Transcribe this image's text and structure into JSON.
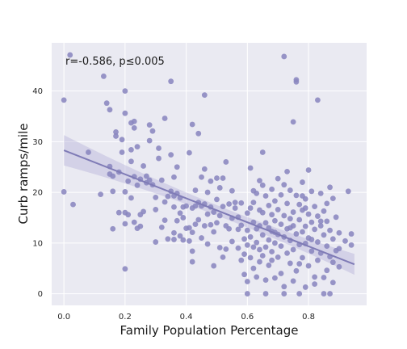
{
  "chart_data": {
    "type": "scatter",
    "xlabel": "Family Population Percentage",
    "ylabel": "Curb ramps/mile",
    "annotation": "r=-0.586,  p≤0.005",
    "xlim": [
      -0.04,
      0.99
    ],
    "ylim": [
      -2.3,
      49.5
    ],
    "xticks": [
      0.0,
      0.2,
      0.4,
      0.6,
      0.8
    ],
    "xtick_labels": [
      "0.0",
      "0.2",
      "0.4",
      "0.6",
      "0.8"
    ],
    "yticks": [
      0,
      10,
      20,
      30,
      40
    ],
    "ytick_labels": [
      "0",
      "10",
      "20",
      "30",
      "40"
    ],
    "grid": true,
    "colors": {
      "background": "#eaeaf2",
      "grid": "#ffffff",
      "points": "#8a86bf",
      "line": "#7f7bb6",
      "band": "#b7b4d9"
    },
    "regression": {
      "x": [
        0.0,
        0.95
      ],
      "y": [
        28.3,
        5.8
      ],
      "ci_upper": [
        31.3,
        7.6
      ],
      "ci_lower": [
        25.3,
        4.0
      ]
    },
    "points": [
      [
        0.02,
        47.1
      ],
      [
        0.0,
        38.2
      ],
      [
        0.0,
        20.1
      ],
      [
        0.03,
        17.6
      ],
      [
        0.08,
        27.9
      ],
      [
        0.12,
        19.6
      ],
      [
        0.13,
        42.9
      ],
      [
        0.14,
        37.6
      ],
      [
        0.15,
        36.3
      ],
      [
        0.15,
        23.6
      ],
      [
        0.15,
        25.1
      ],
      [
        0.16,
        23.2
      ],
      [
        0.16,
        20.2
      ],
      [
        0.16,
        12.8
      ],
      [
        0.17,
        31.9
      ],
      [
        0.17,
        31.1
      ],
      [
        0.18,
        24.0
      ],
      [
        0.18,
        16.0
      ],
      [
        0.19,
        30.4
      ],
      [
        0.19,
        27.9
      ],
      [
        0.2,
        35.6
      ],
      [
        0.2,
        40.0
      ],
      [
        0.2,
        20.1
      ],
      [
        0.2,
        16.0
      ],
      [
        0.2,
        4.9
      ],
      [
        0.21,
        15.6
      ],
      [
        0.22,
        28.4
      ],
      [
        0.22,
        33.7
      ],
      [
        0.22,
        26.1
      ],
      [
        0.22,
        18.9
      ],
      [
        0.23,
        34.0
      ],
      [
        0.23,
        32.7
      ],
      [
        0.23,
        23.1
      ],
      [
        0.23,
        14.1
      ],
      [
        0.24,
        21.4
      ],
      [
        0.24,
        12.9
      ],
      [
        0.25,
        22.6
      ],
      [
        0.25,
        15.6
      ],
      [
        0.25,
        13.3
      ],
      [
        0.26,
        25.2
      ],
      [
        0.27,
        21.9
      ],
      [
        0.27,
        23.2
      ],
      [
        0.28,
        33.3
      ],
      [
        0.28,
        22.4
      ],
      [
        0.29,
        32.1
      ],
      [
        0.29,
        21.5
      ],
      [
        0.3,
        19.0
      ],
      [
        0.3,
        10.2
      ],
      [
        0.31,
        28.7
      ],
      [
        0.31,
        26.7
      ],
      [
        0.32,
        22.4
      ],
      [
        0.32,
        13.1
      ],
      [
        0.33,
        34.6
      ],
      [
        0.33,
        18.1
      ],
      [
        0.34,
        19.2
      ],
      [
        0.34,
        10.8
      ],
      [
        0.35,
        41.9
      ],
      [
        0.35,
        20.2
      ],
      [
        0.35,
        27.4
      ],
      [
        0.36,
        19.3
      ],
      [
        0.36,
        17.1
      ],
      [
        0.36,
        10.7
      ],
      [
        0.36,
        12.0
      ],
      [
        0.37,
        25.0
      ],
      [
        0.37,
        19.8
      ],
      [
        0.37,
        14.4
      ],
      [
        0.38,
        18.9
      ],
      [
        0.38,
        15.9
      ],
      [
        0.38,
        11.4
      ],
      [
        0.39,
        17.1
      ],
      [
        0.39,
        10.6
      ],
      [
        0.4,
        17.3
      ],
      [
        0.4,
        12.9
      ],
      [
        0.41,
        27.8
      ],
      [
        0.41,
        13.0
      ],
      [
        0.41,
        10.4
      ],
      [
        0.42,
        16.9
      ],
      [
        0.42,
        12.1
      ],
      [
        0.42,
        8.4
      ],
      [
        0.42,
        6.3
      ],
      [
        0.42,
        33.4
      ],
      [
        0.43,
        17.3
      ],
      [
        0.43,
        13.7
      ],
      [
        0.44,
        31.6
      ],
      [
        0.44,
        18.0
      ],
      [
        0.44,
        14.6
      ],
      [
        0.45,
        23.0
      ],
      [
        0.45,
        17.3
      ],
      [
        0.45,
        11.0
      ],
      [
        0.46,
        39.2
      ],
      [
        0.46,
        17.7
      ],
      [
        0.46,
        13.4
      ],
      [
        0.47,
        20.0
      ],
      [
        0.47,
        15.7
      ],
      [
        0.47,
        9.8
      ],
      [
        0.48,
        22.2
      ],
      [
        0.48,
        17.1
      ],
      [
        0.48,
        13.6
      ],
      [
        0.49,
        16.1
      ],
      [
        0.49,
        12.2
      ],
      [
        0.5,
        22.8
      ],
      [
        0.5,
        18.6
      ],
      [
        0.5,
        14.0
      ],
      [
        0.51,
        20.9
      ],
      [
        0.51,
        15.4
      ],
      [
        0.51,
        9.1
      ],
      [
        0.52,
        22.8
      ],
      [
        0.52,
        17.2
      ],
      [
        0.52,
        7.2
      ],
      [
        0.53,
        26.0
      ],
      [
        0.53,
        13.4
      ],
      [
        0.54,
        17.7
      ],
      [
        0.54,
        12.8
      ],
      [
        0.55,
        14.9
      ],
      [
        0.55,
        10.3
      ],
      [
        0.56,
        16.9
      ],
      [
        0.56,
        18.0
      ],
      [
        0.57,
        12.7
      ],
      [
        0.57,
        9.0
      ],
      [
        0.58,
        13.5
      ],
      [
        0.58,
        17.9
      ],
      [
        0.58,
        6.6
      ],
      [
        0.59,
        10.8
      ],
      [
        0.59,
        7.8
      ],
      [
        0.6,
        15.9
      ],
      [
        0.6,
        12.5
      ],
      [
        0.6,
        9.6
      ],
      [
        0.6,
        0.0
      ],
      [
        0.61,
        24.8
      ],
      [
        0.61,
        16.9
      ],
      [
        0.61,
        11.2
      ],
      [
        0.61,
        7.1
      ],
      [
        0.62,
        18.0
      ],
      [
        0.62,
        14.1
      ],
      [
        0.62,
        9.2
      ],
      [
        0.62,
        5.0
      ],
      [
        0.63,
        19.8
      ],
      [
        0.63,
        12.8
      ],
      [
        0.63,
        10.1
      ],
      [
        0.63,
        3.3
      ],
      [
        0.64,
        16.5
      ],
      [
        0.64,
        13.4
      ],
      [
        0.64,
        8.7
      ],
      [
        0.64,
        6.3
      ],
      [
        0.65,
        21.4
      ],
      [
        0.65,
        16.0
      ],
      [
        0.65,
        11.6
      ],
      [
        0.65,
        7.5
      ],
      [
        0.65,
        27.9
      ],
      [
        0.66,
        19.3
      ],
      [
        0.66,
        14.0
      ],
      [
        0.66,
        9.2
      ],
      [
        0.66,
        0.0
      ],
      [
        0.67,
        17.4
      ],
      [
        0.67,
        13.0
      ],
      [
        0.67,
        10.6
      ],
      [
        0.67,
        5.6
      ],
      [
        0.68,
        20.6
      ],
      [
        0.68,
        15.6
      ],
      [
        0.68,
        12.3
      ],
      [
        0.68,
        8.3
      ],
      [
        0.69,
        18.3
      ],
      [
        0.69,
        14.4
      ],
      [
        0.69,
        10.0
      ],
      [
        0.69,
        3.1
      ],
      [
        0.7,
        22.7
      ],
      [
        0.7,
        16.6
      ],
      [
        0.7,
        11.7
      ],
      [
        0.7,
        7.2
      ],
      [
        0.71,
        19.5
      ],
      [
        0.71,
        13.7
      ],
      [
        0.71,
        9.4
      ],
      [
        0.72,
        46.8
      ],
      [
        0.72,
        21.5
      ],
      [
        0.72,
        15.4
      ],
      [
        0.72,
        11.2
      ],
      [
        0.72,
        1.4
      ],
      [
        0.73,
        24.1
      ],
      [
        0.73,
        17.8
      ],
      [
        0.73,
        12.8
      ],
      [
        0.73,
        8.0
      ],
      [
        0.74,
        20.4
      ],
      [
        0.74,
        14.8
      ],
      [
        0.74,
        10.5
      ],
      [
        0.74,
        6.0
      ],
      [
        0.75,
        33.9
      ],
      [
        0.75,
        16.1
      ],
      [
        0.75,
        13.4
      ],
      [
        0.75,
        8.7
      ],
      [
        0.76,
        42.2
      ],
      [
        0.76,
        41.8
      ],
      [
        0.76,
        19.4
      ],
      [
        0.76,
        11.8
      ],
      [
        0.76,
        4.5
      ],
      [
        0.77,
        17.6
      ],
      [
        0.77,
        14.6
      ],
      [
        0.77,
        9.7
      ],
      [
        0.77,
        0.0
      ],
      [
        0.78,
        22.0
      ],
      [
        0.78,
        16.5
      ],
      [
        0.78,
        12.2
      ],
      [
        0.78,
        7.1
      ],
      [
        0.79,
        18.7
      ],
      [
        0.79,
        13.3
      ],
      [
        0.79,
        9.9
      ],
      [
        0.79,
        1.3
      ],
      [
        0.8,
        24.4
      ],
      [
        0.8,
        15.7
      ],
      [
        0.8,
        11.0
      ],
      [
        0.8,
        5.5
      ],
      [
        0.81,
        20.2
      ],
      [
        0.81,
        14.1
      ],
      [
        0.81,
        8.4
      ],
      [
        0.82,
        17.2
      ],
      [
        0.82,
        12.7
      ],
      [
        0.82,
        3.3
      ],
      [
        0.83,
        38.2
      ],
      [
        0.83,
        15.3
      ],
      [
        0.83,
        10.2
      ],
      [
        0.83,
        6.6
      ],
      [
        0.84,
        19.8
      ],
      [
        0.84,
        13.4
      ],
      [
        0.84,
        8.0
      ],
      [
        0.85,
        16.3
      ],
      [
        0.85,
        11.6
      ],
      [
        0.85,
        0.0
      ],
      [
        0.86,
        14.3
      ],
      [
        0.86,
        9.4
      ],
      [
        0.86,
        4.6
      ],
      [
        0.87,
        21.0
      ],
      [
        0.87,
        12.5
      ],
      [
        0.87,
        7.3
      ],
      [
        0.88,
        18.8
      ],
      [
        0.88,
        10.8
      ],
      [
        0.88,
        2.2
      ],
      [
        0.89,
        15.1
      ],
      [
        0.89,
        8.5
      ],
      [
        0.9,
        12.0
      ],
      [
        0.9,
        5.3
      ],
      [
        0.92,
        10.4
      ],
      [
        0.93,
        20.2
      ],
      [
        0.94,
        11.8
      ],
      [
        0.94,
        9.6
      ],
      [
        0.2,
        13.8
      ],
      [
        0.21,
        22.2
      ],
      [
        0.26,
        16.2
      ],
      [
        0.3,
        16.6
      ],
      [
        0.33,
        14.5
      ],
      [
        0.39,
        15.0
      ],
      [
        0.43,
        20.4
      ],
      [
        0.49,
        5.5
      ],
      [
        0.53,
        8.8
      ],
      [
        0.57,
        15.1
      ],
      [
        0.59,
        3.8
      ],
      [
        0.62,
        20.3
      ],
      [
        0.66,
        2.7
      ],
      [
        0.69,
        12.1
      ],
      [
        0.71,
        4.0
      ],
      [
        0.74,
        13.0
      ],
      [
        0.77,
        5.9
      ],
      [
        0.79,
        16.9
      ],
      [
        0.81,
        10.7
      ],
      [
        0.84,
        14.3
      ],
      [
        0.86,
        17.8
      ],
      [
        0.88,
        6.2
      ],
      [
        0.9,
        8.9
      ],
      [
        0.24,
        29.0
      ],
      [
        0.28,
        30.2
      ],
      [
        0.36,
        23.0
      ],
      [
        0.46,
        24.6
      ],
      [
        0.55,
        20.3
      ],
      [
        0.64,
        22.3
      ],
      [
        0.68,
        6.6
      ],
      [
        0.72,
        0.0
      ],
      [
        0.78,
        19.3
      ],
      [
        0.82,
        1.9
      ],
      [
        0.85,
        3.2
      ],
      [
        0.87,
        0.0
      ],
      [
        0.6,
        2.4
      ],
      [
        0.75,
        2.5
      ]
    ]
  }
}
